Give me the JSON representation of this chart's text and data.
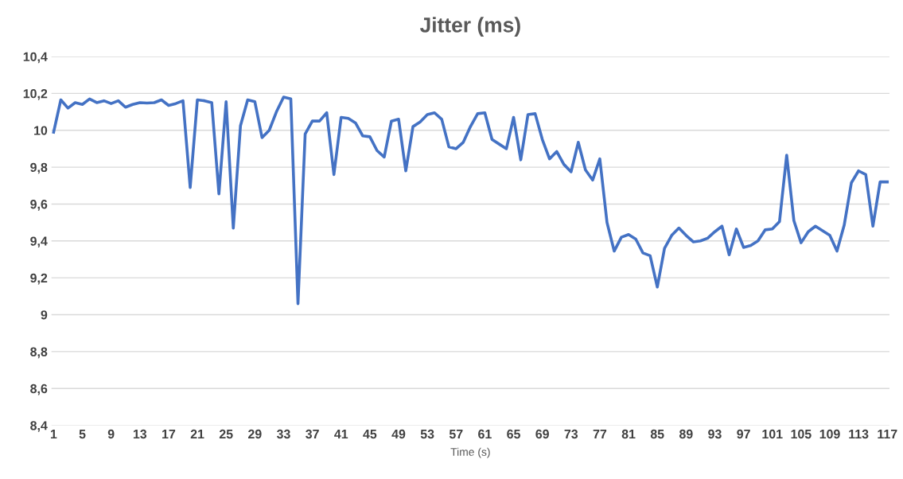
{
  "chart_data": {
    "type": "line",
    "title": "Jitter (ms)",
    "xlabel": "Time (s)",
    "categories": [
      "1",
      null,
      null,
      null,
      "5",
      null,
      null,
      null,
      "9",
      null,
      null,
      null,
      "13",
      null,
      null,
      null,
      "17",
      null,
      null,
      null,
      "21",
      null,
      null,
      null,
      "25",
      null,
      null,
      null,
      "29",
      null,
      null,
      null,
      "33",
      null,
      null,
      null,
      "37",
      null,
      null,
      null,
      "41",
      null,
      null,
      null,
      "45",
      null,
      null,
      null,
      "49",
      null,
      null,
      null,
      "53",
      null,
      null,
      null,
      "57",
      null,
      null,
      null,
      "61",
      null,
      null,
      null,
      "65",
      null,
      null,
      null,
      "69",
      null,
      null,
      null,
      "73",
      null,
      null,
      null,
      "77",
      null,
      null,
      null,
      "81",
      null,
      null,
      null,
      "85",
      null,
      null,
      null,
      "89",
      null,
      null,
      null,
      "93",
      null,
      null,
      null,
      "97",
      null,
      null,
      null,
      "101",
      null,
      null,
      null,
      "105",
      null,
      null,
      null,
      "109",
      null,
      null,
      null,
      "113",
      null,
      null,
      null,
      "117"
    ],
    "series": [
      {
        "color": "#4472c4",
        "values": [
          9.99,
          10.165,
          10.12,
          10.15,
          10.14,
          10.17,
          10.15,
          10.16,
          10.145,
          10.16,
          10.125,
          10.14,
          10.15,
          10.148,
          10.15,
          10.165,
          10.135,
          10.145,
          10.16,
          9.69,
          10.165,
          10.16,
          10.15,
          9.655,
          10.155,
          9.47,
          10.025,
          10.165,
          10.155,
          9.96,
          10.0,
          10.1,
          10.18,
          10.17,
          9.06,
          9.98,
          10.05,
          10.05,
          10.095,
          9.76,
          10.07,
          10.065,
          10.04,
          9.97,
          9.965,
          9.89,
          9.855,
          10.05,
          10.06,
          9.78,
          10.02,
          10.045,
          10.085,
          10.095,
          10.06,
          9.91,
          9.9,
          9.935,
          10.02,
          10.09,
          10.095,
          9.95,
          9.925,
          9.9,
          10.07,
          9.84,
          10.085,
          10.09,
          9.95,
          9.845,
          9.885,
          9.815,
          9.775,
          9.935,
          9.785,
          9.73,
          9.845,
          9.5,
          9.345,
          9.42,
          9.435,
          9.41,
          9.335,
          9.32,
          9.15,
          9.36,
          9.43,
          9.47,
          9.43,
          9.395,
          9.4,
          9.415,
          9.45,
          9.48,
          9.325,
          9.465,
          9.365,
          9.375,
          9.4,
          9.46,
          9.465,
          9.505,
          9.865,
          9.51,
          9.39,
          9.45,
          9.48,
          9.455,
          9.43,
          9.345,
          9.485,
          9.715,
          9.78,
          9.76,
          9.48,
          9.72,
          9.72
        ]
      }
    ],
    "ylim": [
      8.4,
      10.4
    ],
    "yticks": [
      {
        "value": 8.4,
        "label": "8,4"
      },
      {
        "value": 8.6,
        "label": "8,6"
      },
      {
        "value": 8.8,
        "label": "8,8"
      },
      {
        "value": 9,
        "label": "9"
      },
      {
        "value": 9.2,
        "label": "9,2"
      },
      {
        "value": 9.4,
        "label": "9,4"
      },
      {
        "value": 9.6,
        "label": "9,6"
      },
      {
        "value": 9.8,
        "label": "9,8"
      },
      {
        "value": 10,
        "label": "10"
      },
      {
        "value": 10.2,
        "label": "10,2"
      },
      {
        "value": 10.4,
        "label": "10,4"
      }
    ],
    "grid": "y",
    "marker": "none",
    "line_style": "solid",
    "legend": false
  }
}
